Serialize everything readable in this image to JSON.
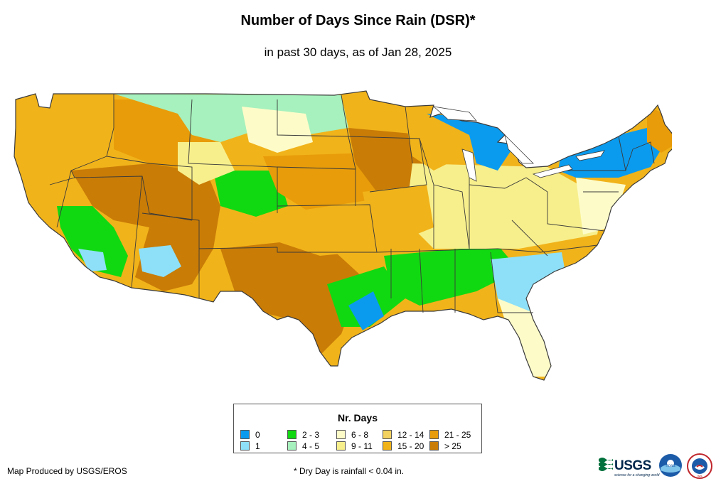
{
  "title": "Number of Days Since Rain (DSR)*",
  "subtitle": "in past 30 days, as of Jan 28, 2025",
  "legend": {
    "title": "Nr. Days",
    "items": [
      {
        "label": "0",
        "color": "#0a9bef"
      },
      {
        "label": "1",
        "color": "#8de0f8"
      },
      {
        "label": "2 - 3",
        "color": "#11d911"
      },
      {
        "label": "4 - 5",
        "color": "#a6f1bd"
      },
      {
        "label": "6 - 8",
        "color": "#fdfcc9"
      },
      {
        "label": "9 - 11",
        "color": "#f7ef8c"
      },
      {
        "label": "12 - 14",
        "color": "#f3d25f"
      },
      {
        "label": "15 - 20",
        "color": "#f1b31a"
      },
      {
        "label": "21 - 25",
        "color": "#e89c09"
      },
      {
        "label": "> 25",
        "color": "#c97c06"
      }
    ]
  },
  "footer": {
    "credit": "Map Produced by USGS/EROS",
    "note": "* Dry Day is rainfall < 0.04 in."
  },
  "logos": {
    "usgs": "USGS",
    "usgs_tagline": "science for a changing world",
    "noaa": "noaa",
    "nws": "nws"
  },
  "colors": {
    "state_border": "#3a3a3a",
    "background": "#ffffff"
  }
}
